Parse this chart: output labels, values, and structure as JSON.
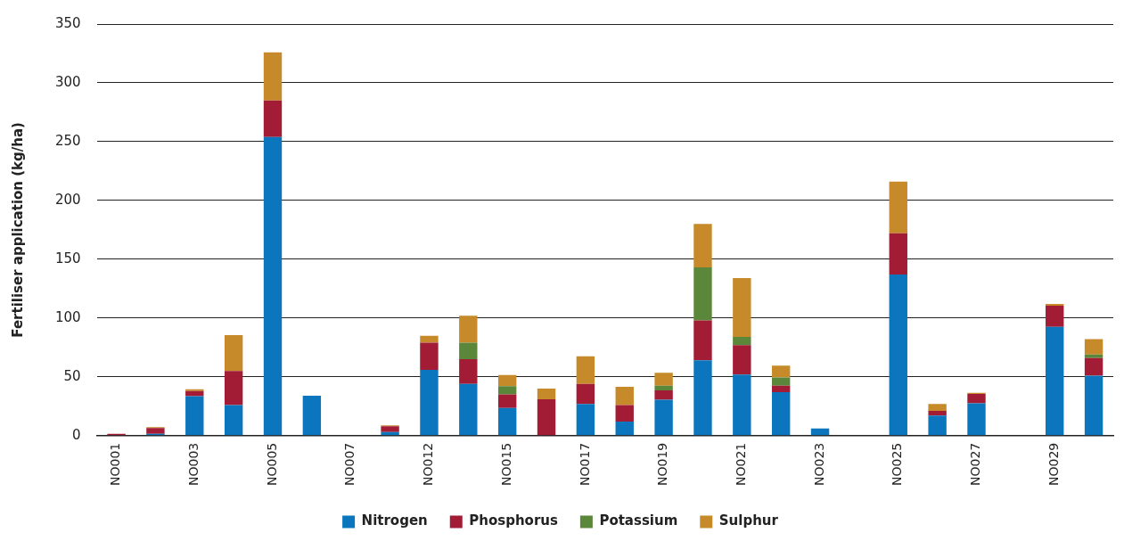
{
  "chart_data": {
    "type": "bar",
    "stacked": true,
    "ylabel": "Fertiliser application (kg/ha)",
    "categories": [
      "NO001",
      null,
      "NO003",
      null,
      "NO005",
      null,
      "NO007",
      null,
      "NO012",
      null,
      "NO015",
      null,
      "NO017",
      null,
      "NO019",
      null,
      "NO021",
      null,
      "NO023",
      null,
      "NO025",
      null,
      "NO027",
      null,
      "NO029",
      null
    ],
    "series": [
      {
        "name": "Nitrogen",
        "color": "#0b76bd",
        "values": [
          0,
          1.5,
          33.5,
          26,
          254,
          34,
          0,
          3,
          56,
          44,
          23.5,
          0,
          27,
          12,
          30.5,
          64,
          52,
          37,
          6,
          0,
          137,
          17,
          27.5,
          0,
          92.5,
          51
        ]
      },
      {
        "name": "Phosphorus",
        "color": "#a21c35",
        "values": [
          1.5,
          5,
          4.5,
          29,
          31,
          0,
          0,
          5,
          23,
          21,
          11.5,
          31,
          17,
          14,
          8,
          34,
          25,
          5.5,
          0,
          0,
          35,
          4,
          8,
          0,
          18,
          15
        ]
      },
      {
        "name": "Potassium",
        "color": "#5b873b",
        "values": [
          0,
          0,
          0,
          0,
          0,
          0,
          0,
          0,
          0,
          14,
          7,
          0,
          0,
          0,
          4,
          45,
          7,
          7,
          0,
          0,
          0,
          0,
          0,
          0,
          0,
          3
        ]
      },
      {
        "name": "Sulphur",
        "color": "#c68a2a",
        "values": [
          0,
          0.7,
          1.5,
          30.5,
          41,
          0,
          0,
          0.8,
          6,
          23,
          9.5,
          9,
          23.5,
          15.5,
          11,
          37,
          50,
          10,
          0,
          0,
          44,
          6,
          1,
          0,
          1.5,
          13
        ]
      }
    ],
    "ylim": [
      0,
      350
    ],
    "yticks": [
      0,
      50,
      100,
      150,
      200,
      250,
      300,
      350
    ],
    "grid": "y",
    "legend": "bottom"
  }
}
